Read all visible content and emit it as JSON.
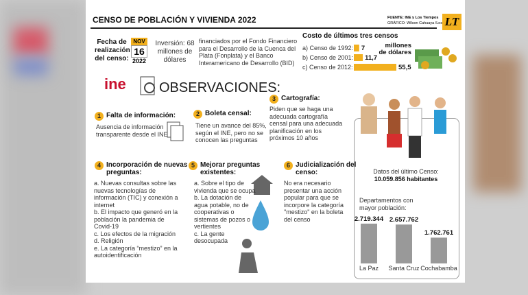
{
  "header": {
    "title": "CENSO DE POBLACIÓN Y VIVIENDA 2022",
    "source": "FUENTE: INE y Los Tiempos",
    "credit": "GRÁFICO: Wilson Cahuaya /Los Tiempos",
    "logo": "LT"
  },
  "fecha": {
    "label": "Fecha de realización del censo:",
    "month": "NOV",
    "day": "16",
    "year": "2022"
  },
  "inversion": "Inversión: 68 millones de dólares",
  "funding": "financiados por el Fondo Financiero para el Desarrollo de la Cuenca del Plata (Fonplata) y el Banco Interamericano de Desarrollo (BID)",
  "costs": {
    "title": "Costo de últimos tres censos",
    "unit": "millones de dólares",
    "items": [
      {
        "label": "a) Censo de 1992:",
        "value": 7,
        "value_label": "7"
      },
      {
        "label": "b) Censo de 2001:",
        "value": 11.7,
        "value_label": "11,7"
      },
      {
        "label": "c) Censo de 2012:",
        "value": 55.5,
        "value_label": "55,5"
      }
    ]
  },
  "ine": "ine",
  "observaciones": "OBSERVACIONES:",
  "sections": [
    {
      "number": 1,
      "title": "Falta de información:",
      "text": "Ausencia de información transparente desde el INE"
    },
    {
      "number": 2,
      "title": "Boleta censal:",
      "text": "Tiene un avance del 85%, según el INE, pero no se conocen las preguntas"
    },
    {
      "number": 3,
      "title": "Cartografía:",
      "text": "Piden que se haga una adecuada cartografía censal para una adecuada planificación en los próximos 10 años"
    },
    {
      "number": 4,
      "title": "Incorporación de nuevas preguntas:",
      "items": [
        "a. Nuevas consultas sobre las nuevas tecnologías de información (TIC) y conexión a internet",
        "b. El impacto que generó en la población la pandemia de Covid-19",
        "c. Los efectos de la migración",
        "d. Religión",
        "e. La categoría “mestizo” en la autoidentificación"
      ]
    },
    {
      "number": 5,
      "title": "Mejorar preguntas existentes:",
      "items": [
        "a. Sobre el tipo de vivienda que se ocupa",
        "b. La dotación de agua potable, no de cooperativas o sistemas de pozos o vertientes",
        "c. La gente desocupada"
      ]
    },
    {
      "number": 6,
      "title": "Judicialización del censo:",
      "text": "No era necesario presentar una acción popular para que se incorpore la categoría \"mestizo\" en la boleta del censo"
    }
  ],
  "last_census": {
    "label": "Datos del último Censo:",
    "value": "10.059.856 habitantes"
  },
  "population": {
    "title": "Departamentos con mayor población:",
    "items": [
      {
        "name": "La Paz",
        "value": 2719344,
        "value_label": "2.719.344"
      },
      {
        "name": "Santa Cruz",
        "value": 2657762,
        "value_label": "2.657.762"
      },
      {
        "name": "Cochabamba",
        "value": 1762761,
        "value_label": "1.762.761"
      }
    ]
  }
}
